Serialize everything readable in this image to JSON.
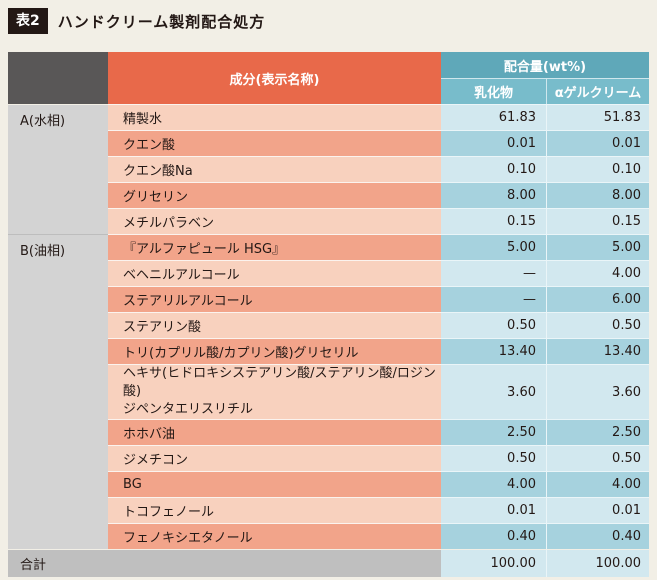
{
  "title": {
    "badge": "表2",
    "text": "ハンドクリーム製剤配合処方"
  },
  "header": {
    "component": "成分(表示名称)",
    "amount": "配合量(wt%)",
    "col1": "乳化物",
    "col2": "αゲルクリーム"
  },
  "groups": [
    {
      "label": "A(水相)",
      "rows": [
        {
          "name": "精製水",
          "v1": "61.83",
          "v2": "51.83"
        },
        {
          "name": "クエン酸",
          "v1": "0.01",
          "v2": "0.01"
        },
        {
          "name": "クエン酸Na",
          "v1": "0.10",
          "v2": "0.10"
        },
        {
          "name": "グリセリン",
          "v1": "8.00",
          "v2": "8.00"
        },
        {
          "name": "メチルパラベン",
          "v1": "0.15",
          "v2": "0.15"
        }
      ]
    },
    {
      "label": "B(油相)",
      "rows": [
        {
          "name": "『アルファピュール HSG』",
          "v1": "5.00",
          "v2": "5.00"
        },
        {
          "name": "ベヘニルアルコール",
          "v1": "—",
          "v2": "4.00"
        },
        {
          "name": "ステアリルアルコール",
          "v1": "—",
          "v2": "6.00"
        },
        {
          "name": "ステアリン酸",
          "v1": "0.50",
          "v2": "0.50"
        },
        {
          "name": "トリ(カプリル酸/カプリン酸)グリセリル",
          "v1": "13.40",
          "v2": "13.40"
        },
        {
          "name_line1": "ヘキサ(ヒドロキシステアリン酸/ステアリン酸/ロジン酸)",
          "name_line2": "ジペンタエリスリチル",
          "v1": "3.60",
          "v2": "3.60"
        },
        {
          "name": "ホホバ油",
          "v1": "2.50",
          "v2": "2.50"
        },
        {
          "name": "ジメチコン",
          "v1": "0.50",
          "v2": "0.50"
        },
        {
          "name": "BG",
          "v1": "4.00",
          "v2": "4.00"
        },
        {
          "name": "トコフェノール",
          "v1": "0.01",
          "v2": "0.01"
        },
        {
          "name": "フェノキシエタノール",
          "v1": "0.40",
          "v2": "0.40"
        }
      ]
    }
  ],
  "total": {
    "label": "合計",
    "v1": "100.00",
    "v2": "100.00"
  }
}
